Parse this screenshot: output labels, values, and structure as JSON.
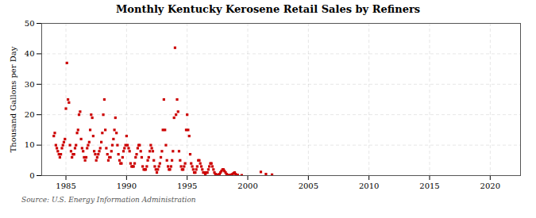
{
  "chart_data": {
    "type": "scatter",
    "title": "Monthly Kentucky Kerosene Retail Sales by Refiners",
    "ylabel": "Thousand Gallons per Day",
    "caption": "Source: U.S. Energy Information Administration",
    "color": "#cc0000",
    "marker": "square",
    "grid": true,
    "xlim": [
      1983.0,
      2022.5
    ],
    "ylim": [
      0,
      50
    ],
    "xticks": [
      1985,
      1990,
      1995,
      2000,
      2005,
      2010,
      2015,
      2020
    ],
    "yticks": [
      0,
      10,
      20,
      30,
      40,
      50
    ],
    "x": [
      1984.0,
      1984.08,
      1984.17,
      1984.25,
      1984.33,
      1984.42,
      1984.5,
      1984.58,
      1984.67,
      1984.75,
      1984.83,
      1984.92,
      1985.0,
      1985.08,
      1985.17,
      1985.25,
      1985.33,
      1985.42,
      1985.5,
      1985.58,
      1985.67,
      1985.75,
      1985.83,
      1985.92,
      1986.0,
      1986.08,
      1986.17,
      1986.25,
      1986.33,
      1986.42,
      1986.5,
      1986.58,
      1986.67,
      1986.75,
      1986.83,
      1986.92,
      1987.0,
      1987.08,
      1987.17,
      1987.25,
      1987.33,
      1987.42,
      1987.5,
      1987.58,
      1987.67,
      1987.75,
      1987.83,
      1987.92,
      1988.0,
      1988.08,
      1988.17,
      1988.25,
      1988.33,
      1988.42,
      1988.5,
      1988.58,
      1988.67,
      1988.75,
      1988.83,
      1988.92,
      1989.0,
      1989.08,
      1989.17,
      1989.25,
      1989.33,
      1989.42,
      1989.5,
      1989.58,
      1989.67,
      1989.75,
      1989.83,
      1989.92,
      1990.0,
      1990.08,
      1990.17,
      1990.25,
      1990.33,
      1990.42,
      1990.5,
      1990.58,
      1990.67,
      1990.75,
      1990.83,
      1990.92,
      1991.0,
      1991.08,
      1991.17,
      1991.25,
      1991.33,
      1991.42,
      1991.5,
      1991.58,
      1991.67,
      1991.75,
      1991.83,
      1991.92,
      1992.0,
      1992.08,
      1992.17,
      1992.25,
      1992.33,
      1992.42,
      1992.5,
      1992.58,
      1992.67,
      1992.75,
      1992.83,
      1992.92,
      1993.0,
      1993.08,
      1993.17,
      1993.25,
      1993.33,
      1993.42,
      1993.5,
      1993.58,
      1993.67,
      1993.75,
      1993.83,
      1993.92,
      1994.0,
      1994.08,
      1994.17,
      1994.25,
      1994.33,
      1994.42,
      1994.5,
      1994.58,
      1994.67,
      1994.75,
      1994.83,
      1994.92,
      1995.0,
      1995.08,
      1995.17,
      1995.25,
      1995.33,
      1995.42,
      1995.5,
      1995.58,
      1995.67,
      1995.75,
      1995.83,
      1995.92,
      1996.0,
      1996.08,
      1996.17,
      1996.25,
      1996.33,
      1996.42,
      1996.5,
      1996.58,
      1996.67,
      1996.75,
      1996.83,
      1996.92,
      1997.0,
      1997.08,
      1997.17,
      1997.25,
      1997.33,
      1997.42,
      1997.5,
      1997.58,
      1997.67,
      1997.75,
      1997.83,
      1997.92,
      1998.0,
      1998.08,
      1998.17,
      1998.25,
      1998.33,
      1998.42,
      1998.5,
      1998.58,
      1998.67,
      1998.75,
      1998.83,
      1998.92,
      1999.0,
      1999.17,
      1999.5,
      2001.08,
      2001.5,
      2002.0
    ],
    "values": [
      13,
      14,
      10,
      9,
      8,
      7,
      6,
      7,
      9,
      10,
      11,
      12,
      22,
      37,
      25,
      24,
      10,
      8,
      6,
      7,
      7,
      9,
      10,
      14,
      15,
      20,
      21,
      12,
      9,
      8,
      6,
      5,
      6,
      9,
      10,
      11,
      15,
      20,
      19,
      13,
      8,
      7,
      5,
      6,
      7,
      8,
      9,
      11,
      14,
      20,
      25,
      15,
      9,
      7,
      5,
      6,
      6,
      8,
      10,
      12,
      15,
      19,
      14,
      10,
      7,
      5,
      4,
      4,
      6,
      8,
      9,
      10,
      13,
      10,
      9,
      8,
      4,
      3,
      3,
      3,
      4,
      6,
      7,
      9,
      10,
      10,
      8,
      6,
      3,
      2,
      2,
      2,
      3,
      5,
      6,
      8,
      10,
      9,
      8,
      5,
      3,
      2,
      1,
      2,
      3,
      4,
      6,
      8,
      15,
      25,
      15,
      10,
      5,
      3,
      2,
      2,
      3,
      5,
      8,
      19,
      42,
      20,
      25,
      21,
      8,
      5,
      3,
      2,
      2,
      3,
      4,
      15,
      20,
      15,
      13,
      7,
      4,
      3,
      2,
      1,
      1,
      2,
      3,
      5,
      5,
      4,
      3,
      2,
      1,
      1,
      0.5,
      1,
      1,
      2,
      3,
      4,
      4,
      3,
      2,
      1,
      0.5,
      0.3,
      0.2,
      0.3,
      0.5,
      1,
      1.5,
      2,
      2,
      1.5,
      1,
      0.5,
      0.2,
      0.1,
      0.1,
      0.2,
      0.3,
      0.5,
      0.8,
      1,
      0.5,
      0.2,
      0.1,
      1.2,
      0.5,
      0.3
    ]
  }
}
